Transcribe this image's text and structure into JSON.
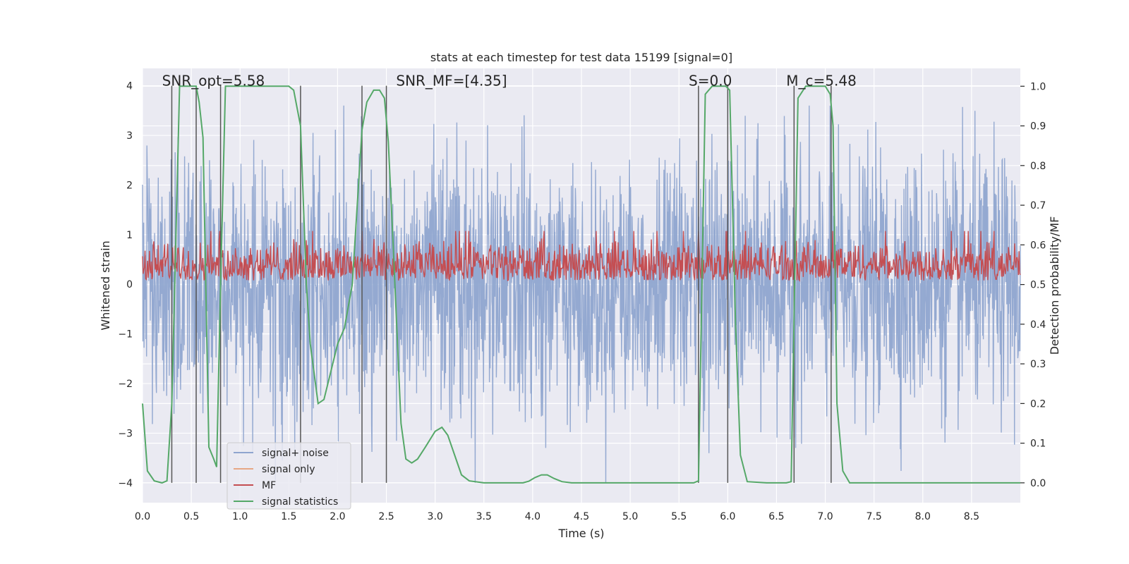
{
  "chart_data": {
    "type": "line",
    "title": "stats at each timestep for test data 15199 [signal=0]",
    "xlabel": "Time (s)",
    "ylabel": "Whitened strain",
    "y2label": "Detection probability/MF",
    "xlim": [
      0,
      9
    ],
    "ylim": [
      -4.4,
      4.35
    ],
    "y2lim": [
      -0.05,
      1.045
    ],
    "x_ticks": [
      0.0,
      0.5,
      1.0,
      1.5,
      2.0,
      2.5,
      3.0,
      3.5,
      4.0,
      4.5,
      5.0,
      5.5,
      6.0,
      6.5,
      7.0,
      7.5,
      8.0,
      8.5
    ],
    "y_ticks": [
      -4,
      -3,
      -2,
      -1,
      0,
      1,
      2,
      3,
      4
    ],
    "y2_ticks": [
      0.0,
      0.1,
      0.2,
      0.3,
      0.4,
      0.5,
      0.6,
      0.7,
      0.8,
      0.9,
      1.0
    ],
    "grid": true,
    "legend_position": "lower-left",
    "annotations": [
      {
        "text": "SNR_opt=5.58",
        "x": 0.2,
        "y": 4.0
      },
      {
        "text": "SNR_MF=[4.35]",
        "x": 2.6,
        "y": 4.0
      },
      {
        "text": "S=0.0",
        "x": 5.6,
        "y": 4.0
      },
      {
        "text": "M_c=5.48",
        "x": 6.6,
        "y": 4.0
      }
    ],
    "series": [
      {
        "name": "signal+ noise",
        "color": "#8fa5cf",
        "axis": "left",
        "style": "noise",
        "amplitude_typical": 2.0,
        "amplitude_max": 3.6
      },
      {
        "name": "signal only",
        "color": "#e7a785",
        "axis": "left",
        "values": []
      },
      {
        "name": "MF",
        "color": "#c44e52",
        "axis": "right",
        "style": "band",
        "range": [
          0.51,
          0.62
        ]
      },
      {
        "name": "signal statistics",
        "color": "#55a868",
        "axis": "right",
        "x": [
          0.0,
          0.05,
          0.12,
          0.2,
          0.25,
          0.3,
          0.33,
          0.38,
          0.42,
          0.5,
          0.55,
          0.58,
          0.62,
          0.68,
          0.73,
          0.76,
          0.8,
          0.85,
          0.88,
          1.0,
          1.5,
          1.55,
          1.62,
          1.68,
          1.72,
          1.8,
          1.86,
          1.92,
          2.0,
          2.07,
          2.15,
          2.25,
          2.3,
          2.37,
          2.43,
          2.48,
          2.52,
          2.57,
          2.65,
          2.7,
          2.76,
          2.82,
          2.9,
          3.0,
          3.07,
          3.13,
          3.2,
          3.27,
          3.35,
          3.5,
          3.9,
          3.96,
          4.02,
          4.09,
          4.15,
          4.22,
          4.3,
          4.4,
          5.0,
          5.65,
          5.7,
          5.77,
          5.84,
          5.9,
          5.98,
          6.02,
          6.08,
          6.13,
          6.2,
          6.4,
          6.6,
          6.65,
          6.72,
          6.8,
          7.0,
          7.05,
          7.08,
          7.12,
          7.18,
          7.25,
          7.5,
          9.0
        ],
        "values": [
          0.2,
          0.03,
          0.005,
          0.0,
          0.005,
          0.2,
          0.5,
          1.0,
          1.0,
          1.0,
          1.0,
          0.96,
          0.87,
          0.09,
          0.06,
          0.04,
          0.5,
          1.0,
          1.0,
          1.0,
          1.0,
          0.99,
          0.9,
          0.5,
          0.35,
          0.2,
          0.21,
          0.27,
          0.35,
          0.39,
          0.5,
          0.89,
          0.96,
          0.99,
          0.99,
          0.97,
          0.86,
          0.6,
          0.15,
          0.06,
          0.05,
          0.06,
          0.09,
          0.13,
          0.14,
          0.12,
          0.07,
          0.02,
          0.005,
          0.0,
          0.0,
          0.004,
          0.013,
          0.02,
          0.02,
          0.011,
          0.003,
          0.0,
          0.0,
          0.0,
          0.005,
          0.98,
          1.0,
          1.0,
          1.0,
          0.99,
          0.4,
          0.07,
          0.003,
          0.0,
          0.0,
          0.003,
          0.97,
          1.0,
          1.0,
          0.98,
          0.9,
          0.2,
          0.03,
          0.0,
          0.0,
          0.0
        ]
      }
    ],
    "vertical_lines": [
      0.3,
      0.55,
      0.8,
      1.62,
      2.25,
      2.5,
      5.7,
      6.0,
      6.68,
      7.06
    ]
  }
}
